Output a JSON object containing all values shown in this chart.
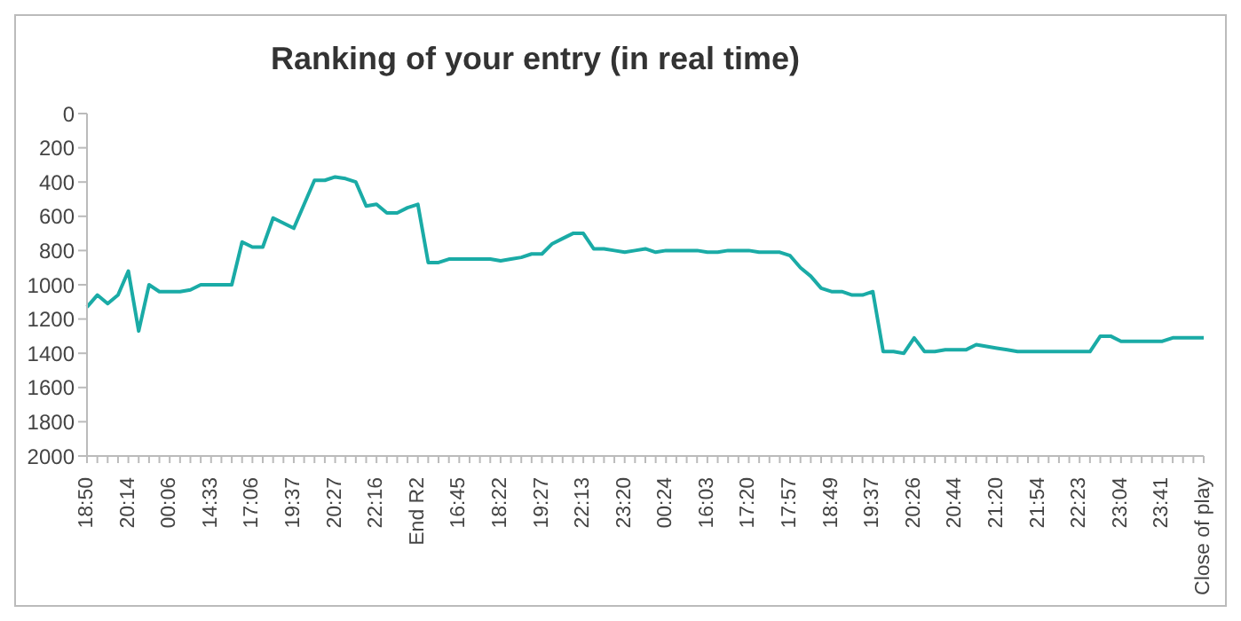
{
  "chart_data": {
    "type": "line",
    "title": "Ranking of your entry (in real time)",
    "categories": [
      "18:50",
      null,
      null,
      null,
      "20:14",
      null,
      null,
      null,
      "00:06",
      null,
      null,
      null,
      "14:33",
      null,
      null,
      null,
      "17:06",
      null,
      null,
      null,
      "19:37",
      null,
      null,
      null,
      "20:27",
      null,
      null,
      null,
      "22:16",
      null,
      null,
      null,
      "End R2",
      null,
      null,
      null,
      "16:45",
      null,
      null,
      null,
      "18:22",
      null,
      null,
      null,
      "19:27",
      null,
      null,
      null,
      "22:13",
      null,
      null,
      null,
      "23:20",
      null,
      null,
      null,
      "00:24",
      null,
      null,
      null,
      "16:03",
      null,
      null,
      null,
      "17:20",
      null,
      null,
      null,
      "17:57",
      null,
      null,
      null,
      "18:49",
      null,
      null,
      null,
      "19:37",
      null,
      null,
      null,
      "20:26",
      null,
      null,
      null,
      "20:44",
      null,
      null,
      null,
      "21:20",
      null,
      null,
      null,
      "21:54",
      null,
      null,
      null,
      "22:23",
      null,
      null,
      null,
      "23:04",
      null,
      null,
      null,
      "23:41",
      null,
      null,
      null,
      "Close of play"
    ],
    "series": [
      {
        "color": "#1aaba6",
        "values": [
          1130,
          1060,
          1110,
          1060,
          920,
          1270,
          1000,
          1040,
          1040,
          1040,
          1030,
          1000,
          1000,
          1000,
          1000,
          750,
          780,
          780,
          610,
          640,
          670,
          530,
          390,
          390,
          370,
          380,
          400,
          540,
          530,
          580,
          580,
          550,
          530,
          870,
          870,
          850,
          850,
          850,
          850,
          850,
          860,
          850,
          840,
          820,
          820,
          760,
          730,
          700,
          700,
          790,
          790,
          800,
          810,
          800,
          790,
          810,
          800,
          800,
          800,
          800,
          810,
          810,
          800,
          800,
          800,
          810,
          810,
          810,
          830,
          900,
          950,
          1020,
          1040,
          1040,
          1060,
          1060,
          1040,
          1390,
          1390,
          1400,
          1310,
          1390,
          1390,
          1380,
          1380,
          1380,
          1350,
          1360,
          1370,
          1380,
          1390,
          1390,
          1390,
          1390,
          1390,
          1390,
          1390,
          1390,
          1300,
          1300,
          1330,
          1330,
          1330,
          1330,
          1330,
          1310,
          1310,
          1310,
          1310
        ]
      }
    ],
    "ylim": [
      2000,
      0
    ],
    "yticks": [
      0,
      200,
      400,
      600,
      800,
      1000,
      1200,
      1400,
      1600,
      1800,
      2000
    ],
    "grid": false,
    "legend": false,
    "marker": "none",
    "line_style": "solid"
  }
}
